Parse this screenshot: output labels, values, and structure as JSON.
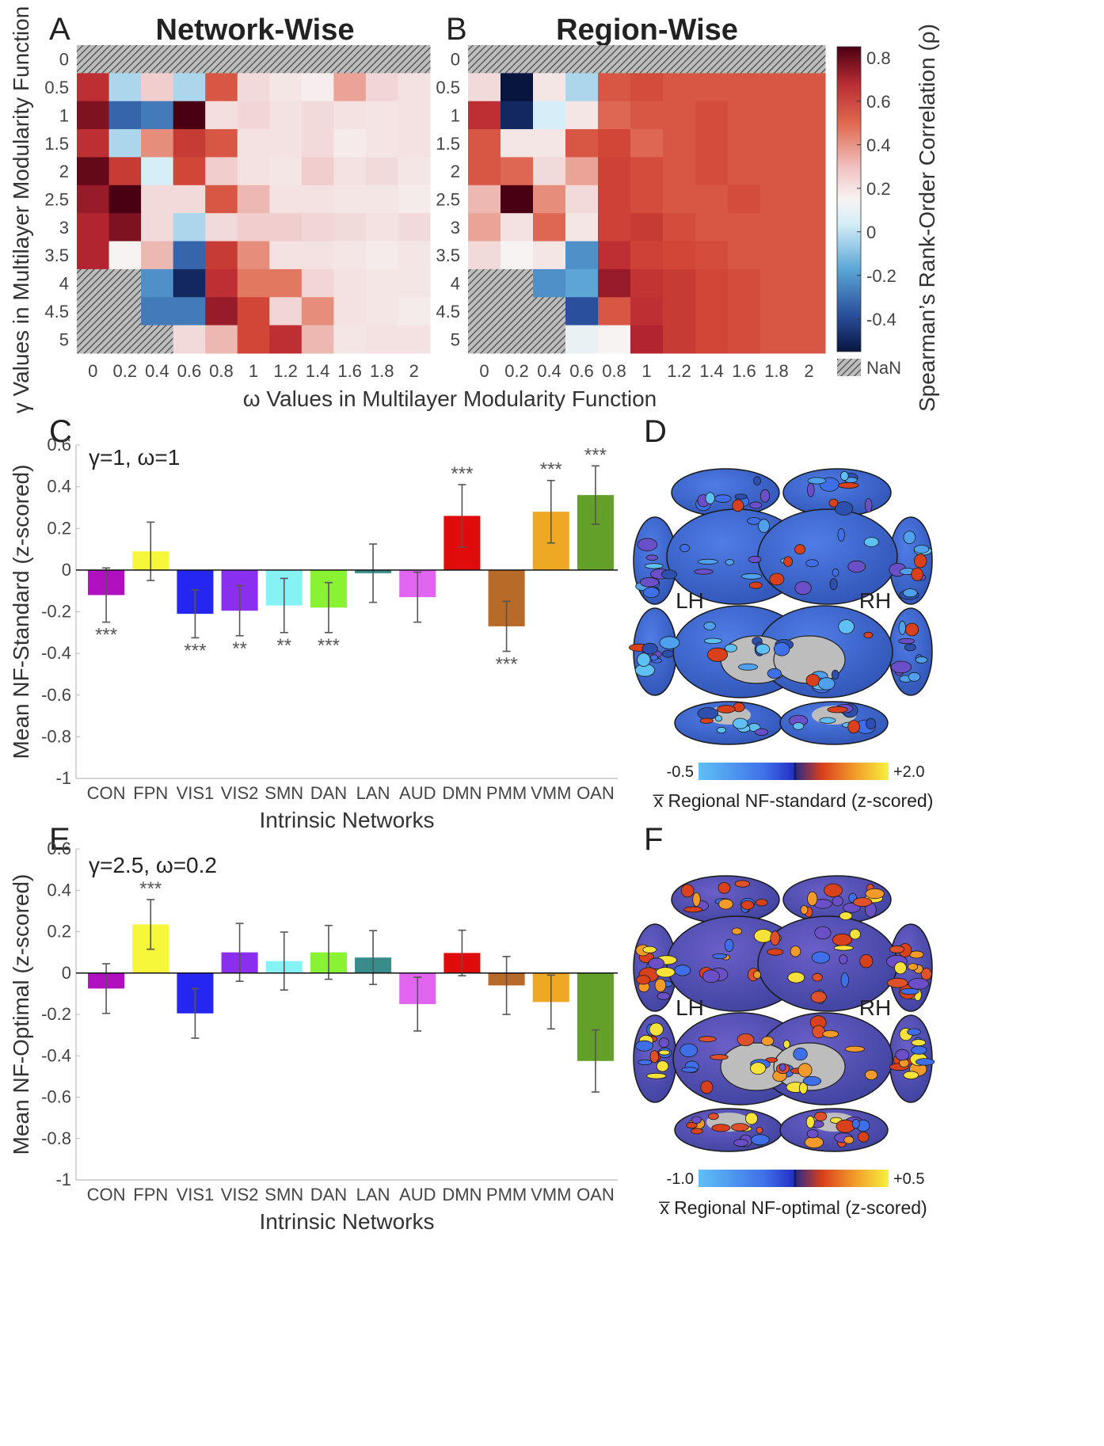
{
  "colors": {
    "CON": "#b010c0",
    "FPN": "#f6f63a",
    "VIS1": "#2626f2",
    "VIS2": "#8a2ef0",
    "SMN": "#86f2f5",
    "DAN": "#88f233",
    "LAN": "#3a8c8a",
    "AUD": "#e066f0",
    "DMN": "#e00c0c",
    "PMM": "#b86a28",
    "VMM": "#efa824",
    "OAN": "#63a02a",
    "nan": "#9a9a9a",
    "brain_base": "#3b6ad8"
  },
  "heatmaps": {
    "y_label": "γ Values in Multilayer Modularity Function",
    "x_label": "ω Values in Multilayer Modularity Function",
    "colorbar": {
      "label": "Spearman’s Rank-Order Correlation (ρ)",
      "ticks": [
        "0.8",
        "0.6",
        "0.4",
        "0.2",
        "0",
        "-0.2",
        "-0.4"
      ],
      "nan_label": "NaN"
    }
  },
  "chart_data": [
    {
      "type": "heatmap",
      "panel": "A",
      "title": "Network-Wise",
      "x": [
        "0",
        "0.2",
        "0.4",
        "0.6",
        "0.8",
        "1",
        "1.2",
        "1.4",
        "1.6",
        "1.8",
        "2"
      ],
      "y": [
        "0",
        "0.5",
        "1",
        "1.5",
        "2",
        "2.5",
        "3",
        "3.5",
        "4",
        "4.5",
        "5"
      ],
      "values": [
        [
          null,
          null,
          null,
          null,
          null,
          null,
          null,
          null,
          null,
          null,
          null
        ],
        [
          0.6,
          -0.1,
          0.15,
          -0.1,
          0.45,
          0.1,
          0.05,
          0.02,
          0.25,
          0.12,
          0.07
        ],
        [
          0.75,
          -0.35,
          -0.3,
          0.85,
          0.08,
          0.12,
          0.07,
          0.1,
          0.07,
          0.06,
          0.07
        ],
        [
          0.6,
          -0.1,
          0.3,
          0.55,
          0.45,
          0.07,
          0.07,
          0.1,
          0.03,
          0.06,
          0.07
        ],
        [
          0.8,
          0.55,
          -0.05,
          0.5,
          0.15,
          0.07,
          0.05,
          0.15,
          0.07,
          0.1,
          0.05
        ],
        [
          0.7,
          0.85,
          0.1,
          0.1,
          0.45,
          0.2,
          0.07,
          0.07,
          0.05,
          0.05,
          0.03
        ],
        [
          0.65,
          0.75,
          0.1,
          -0.1,
          0.1,
          0.15,
          0.15,
          0.12,
          0.1,
          0.07,
          0.1
        ],
        [
          0.65,
          0.0,
          0.2,
          -0.35,
          0.55,
          0.3,
          0.07,
          0.07,
          0.05,
          0.03,
          0.05
        ],
        [
          null,
          null,
          -0.25,
          -0.5,
          0.6,
          0.35,
          0.35,
          0.12,
          0.07,
          0.05,
          0.05
        ],
        [
          null,
          null,
          -0.3,
          -0.3,
          0.7,
          0.5,
          0.12,
          0.3,
          0.07,
          0.05,
          0.03
        ],
        [
          null,
          null,
          null,
          0.1,
          0.2,
          0.5,
          0.6,
          0.2,
          0.05,
          0.07,
          0.07
        ]
      ],
      "ylim": [
        -0.5,
        0.8
      ]
    },
    {
      "type": "heatmap",
      "panel": "B",
      "title": "Region-Wise",
      "x": [
        "0",
        "0.2",
        "0.4",
        "0.6",
        "0.8",
        "1",
        "1.2",
        "1.4",
        "1.6",
        "1.8",
        "2"
      ],
      "y": [
        "0",
        "0.5",
        "1",
        "1.5",
        "2",
        "2.5",
        "3",
        "3.5",
        "4",
        "4.5",
        "5"
      ],
      "values": [
        [
          null,
          null,
          null,
          null,
          null,
          null,
          null,
          null,
          null,
          null,
          null
        ],
        [
          0.1,
          -0.55,
          0.05,
          -0.1,
          0.45,
          0.48,
          0.45,
          0.45,
          0.45,
          0.45,
          0.45
        ],
        [
          0.6,
          -0.5,
          -0.05,
          0.05,
          0.4,
          0.45,
          0.45,
          0.48,
          0.45,
          0.45,
          0.45
        ],
        [
          0.45,
          0.05,
          0.05,
          0.45,
          0.5,
          0.4,
          0.45,
          0.48,
          0.45,
          0.45,
          0.45
        ],
        [
          0.45,
          0.4,
          0.1,
          0.25,
          0.52,
          0.48,
          0.45,
          0.48,
          0.45,
          0.45,
          0.45
        ],
        [
          0.2,
          0.85,
          0.3,
          0.1,
          0.52,
          0.48,
          0.45,
          0.45,
          0.48,
          0.45,
          0.45
        ],
        [
          0.25,
          0.07,
          0.4,
          0.05,
          0.52,
          0.55,
          0.48,
          0.45,
          0.45,
          0.45,
          0.45
        ],
        [
          0.1,
          0.0,
          0.05,
          -0.25,
          0.6,
          0.52,
          0.5,
          0.48,
          0.45,
          0.45,
          0.45
        ],
        [
          null,
          null,
          -0.25,
          -0.2,
          0.7,
          0.58,
          0.55,
          0.5,
          0.48,
          0.45,
          0.45
        ],
        [
          null,
          null,
          null,
          -0.4,
          0.45,
          0.6,
          0.55,
          0.5,
          0.48,
          0.45,
          0.45
        ],
        [
          null,
          null,
          null,
          -0.02,
          0.0,
          0.65,
          0.55,
          0.5,
          0.48,
          0.45,
          0.45
        ]
      ],
      "ylim": [
        -0.5,
        0.8
      ]
    },
    {
      "type": "bar",
      "panel": "C",
      "annotation": "γ=1, ω=1",
      "ylabel": "Mean NF-Standard (z-scored)",
      "xlabel": "Intrinsic Networks",
      "categories": [
        "CON",
        "FPN",
        "VIS1",
        "VIS2",
        "SMN",
        "DAN",
        "LAN",
        "AUD",
        "DMN",
        "PMM",
        "VMM",
        "OAN"
      ],
      "values": [
        -0.12,
        0.09,
        -0.21,
        -0.195,
        -0.17,
        -0.18,
        -0.015,
        -0.13,
        0.26,
        -0.27,
        0.28,
        0.36
      ],
      "errors": [
        0.13,
        0.14,
        0.115,
        0.12,
        0.13,
        0.12,
        0.14,
        0.12,
        0.15,
        0.12,
        0.15,
        0.14
      ],
      "significance": [
        "***",
        "",
        "***",
        "**",
        "**",
        "***",
        "",
        "",
        "***",
        "***",
        "***",
        "***"
      ],
      "ylim": [
        -1,
        0.6
      ],
      "yticks": [
        "0.6",
        "0.4",
        "0.2",
        "0",
        "-0.2",
        "-0.4",
        "-0.6",
        "-0.8",
        "-1"
      ]
    },
    {
      "type": "bar",
      "panel": "E",
      "annotation": "γ=2.5, ω=0.2",
      "ylabel": "Mean NF-Optimal (z-scored)",
      "xlabel": "Intrinsic Networks",
      "categories": [
        "CON",
        "FPN",
        "VIS1",
        "VIS2",
        "SMN",
        "DAN",
        "LAN",
        "AUD",
        "DMN",
        "PMM",
        "VMM",
        "OAN"
      ],
      "values": [
        -0.075,
        0.235,
        -0.195,
        0.1,
        0.058,
        0.1,
        0.075,
        -0.15,
        0.097,
        -0.06,
        -0.14,
        -0.425
      ],
      "errors": [
        0.12,
        0.12,
        0.12,
        0.14,
        0.14,
        0.13,
        0.13,
        0.13,
        0.11,
        0.14,
        0.13,
        0.15
      ],
      "significance": [
        "",
        "***",
        "",
        "",
        "",
        "",
        "",
        "",
        "",
        "",
        "",
        ""
      ],
      "ylim": [
        -1,
        0.6
      ],
      "yticks": [
        "0.6",
        "0.4",
        "0.2",
        "0",
        "-0.2",
        "-0.4",
        "-0.6",
        "-0.8",
        "-1"
      ]
    }
  ],
  "brains": [
    {
      "panel": "D",
      "left_label": "LH",
      "right_label": "RH",
      "scale_min": "-0.5",
      "scale_max": "+2.0",
      "caption": "x̅ Regional NF-standard (z-scored)"
    },
    {
      "panel": "F",
      "left_label": "LH",
      "right_label": "RH",
      "scale_min": "-1.0",
      "scale_max": "+0.5",
      "caption": "x̅ Regional NF-optimal (z-scored)"
    }
  ]
}
